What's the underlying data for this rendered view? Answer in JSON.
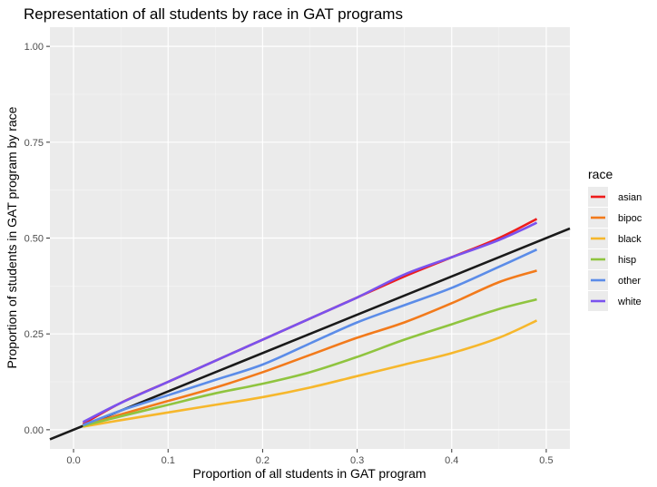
{
  "chart_data": {
    "type": "line",
    "title": "Representation of all students by race in GAT programs",
    "xlabel": "Proportion of all students in GAT program",
    "ylabel": "Proportion of students in GAT program by race",
    "xlim": [
      -0.025,
      0.525
    ],
    "ylim": [
      -0.05,
      1.05
    ],
    "x_ticks": [
      0.0,
      0.1,
      0.2,
      0.3,
      0.4,
      0.5
    ],
    "x_tick_labels": [
      "0.0",
      "0.1",
      "0.2",
      "0.3",
      "0.4",
      "0.5"
    ],
    "y_ticks": [
      0.0,
      0.25,
      0.5,
      0.75,
      1.0
    ],
    "y_tick_labels": [
      "0.00",
      "0.25",
      "0.50",
      "0.75",
      "1.00"
    ],
    "grid": true,
    "legend_title": "race",
    "legend_position": "right",
    "reference_line": {
      "slope": 1,
      "intercept": 0,
      "color": "#1a1a1a"
    },
    "series": [
      {
        "name": "asian",
        "color": "#ee1c1c",
        "x": [
          0.01,
          0.05,
          0.1,
          0.15,
          0.2,
          0.25,
          0.3,
          0.35,
          0.4,
          0.45,
          0.49
        ],
        "y": [
          0.015,
          0.07,
          0.125,
          0.18,
          0.235,
          0.29,
          0.345,
          0.4,
          0.45,
          0.5,
          0.55
        ]
      },
      {
        "name": "bipoc",
        "color": "#f27a1b",
        "x": [
          0.01,
          0.05,
          0.1,
          0.15,
          0.2,
          0.25,
          0.3,
          0.35,
          0.4,
          0.45,
          0.49
        ],
        "y": [
          0.01,
          0.04,
          0.075,
          0.11,
          0.15,
          0.195,
          0.24,
          0.28,
          0.33,
          0.385,
          0.415
        ]
      },
      {
        "name": "black",
        "color": "#f6b72c",
        "x": [
          0.01,
          0.05,
          0.1,
          0.15,
          0.2,
          0.25,
          0.3,
          0.35,
          0.4,
          0.45,
          0.49
        ],
        "y": [
          0.008,
          0.025,
          0.045,
          0.065,
          0.085,
          0.11,
          0.14,
          0.17,
          0.2,
          0.24,
          0.285
        ]
      },
      {
        "name": "hisp",
        "color": "#8fc43f",
        "x": [
          0.01,
          0.05,
          0.1,
          0.15,
          0.2,
          0.25,
          0.3,
          0.35,
          0.4,
          0.45,
          0.49
        ],
        "y": [
          0.01,
          0.035,
          0.065,
          0.095,
          0.12,
          0.15,
          0.19,
          0.235,
          0.275,
          0.315,
          0.34
        ]
      },
      {
        "name": "other",
        "color": "#5b8ce8",
        "x": [
          0.01,
          0.05,
          0.1,
          0.15,
          0.2,
          0.25,
          0.3,
          0.35,
          0.4,
          0.45,
          0.49
        ],
        "y": [
          0.012,
          0.05,
          0.09,
          0.13,
          0.17,
          0.225,
          0.28,
          0.325,
          0.37,
          0.425,
          0.47
        ]
      },
      {
        "name": "white",
        "color": "#7a52ee",
        "x": [
          0.01,
          0.05,
          0.1,
          0.15,
          0.2,
          0.25,
          0.3,
          0.35,
          0.4,
          0.45,
          0.49
        ],
        "y": [
          0.02,
          0.07,
          0.125,
          0.18,
          0.235,
          0.29,
          0.345,
          0.405,
          0.45,
          0.495,
          0.54
        ]
      }
    ]
  }
}
